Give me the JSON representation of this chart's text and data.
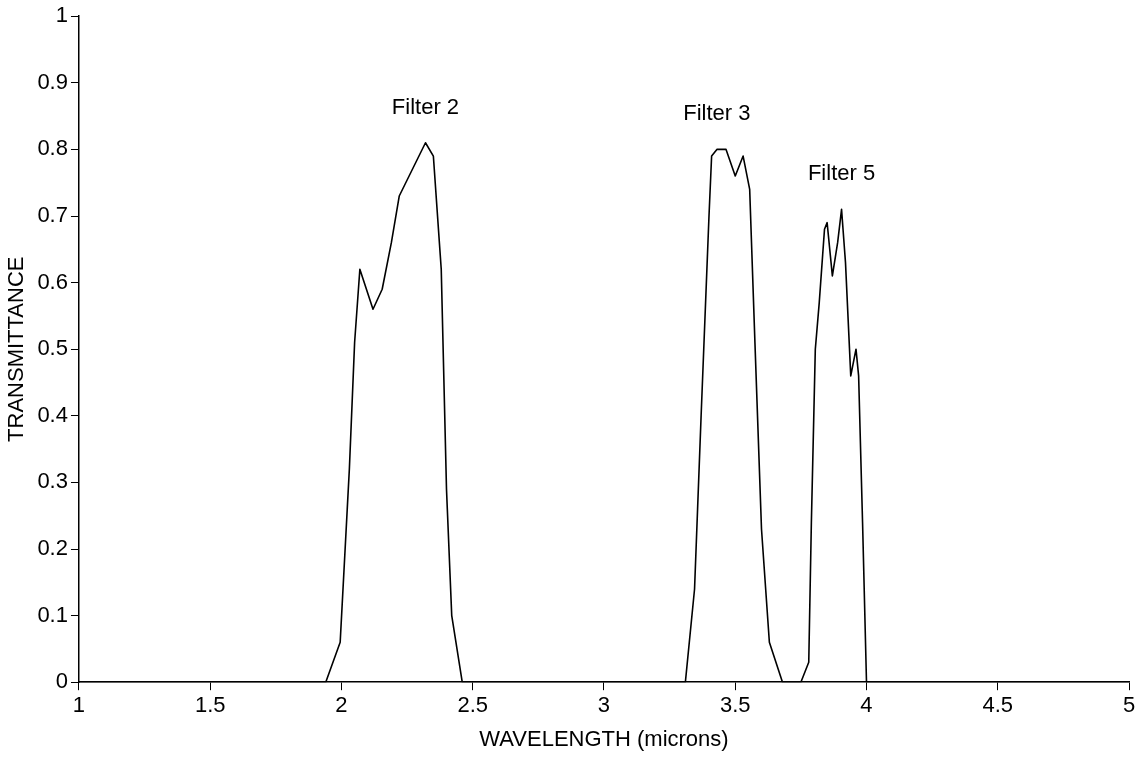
{
  "chart_data": {
    "type": "line",
    "xlabel": "WAVELENGTH (microns)",
    "ylabel": "TRANSMITTANCE",
    "x": [
      1,
      1.94,
      1.995,
      2.03,
      2.05,
      2.07,
      2.12,
      2.155,
      2.19,
      2.22,
      2.32,
      2.35,
      2.38,
      2.4,
      2.42,
      2.46,
      3.31,
      3.345,
      3.37,
      3.4,
      3.41,
      3.43,
      3.465,
      3.5,
      3.53,
      3.555,
      3.575,
      3.6,
      3.63,
      3.68,
      3.75,
      3.78,
      3.79,
      3.805,
      3.82,
      3.84,
      3.85,
      3.87,
      3.89,
      3.905,
      3.92,
      3.94,
      3.96,
      3.97,
      3.985,
      4,
      5
    ],
    "series": [
      {
        "color": "#000000",
        "values": [
          0,
          0,
          0.06,
          0.32,
          0.51,
          0.62,
          0.56,
          0.59,
          0.66,
          0.73,
          0.81,
          0.79,
          0.62,
          0.29,
          0.1,
          0,
          0,
          0.14,
          0.4,
          0.7,
          0.79,
          0.8,
          0.8,
          0.76,
          0.79,
          0.74,
          0.51,
          0.23,
          0.06,
          0,
          0,
          0.03,
          0.24,
          0.5,
          0.57,
          0.68,
          0.69,
          0.61,
          0.66,
          0.71,
          0.63,
          0.46,
          0.5,
          0.46,
          0.24,
          0,
          0
        ]
      }
    ],
    "xlim": [
      1,
      5
    ],
    "xticks": [
      1,
      1.5,
      2,
      2.5,
      3,
      3.5,
      4,
      4.5,
      5
    ],
    "ylim": [
      0,
      1
    ],
    "yticks": [
      0,
      0.1,
      0.2,
      0.3,
      0.4,
      0.5,
      0.6,
      0.7,
      0.8,
      0.9,
      1
    ],
    "grid": false,
    "legend": false,
    "marker": "none",
    "line_style": "solid",
    "annotations": [
      "Filter 2",
      "Filter 3",
      "Filter 5"
    ]
  }
}
